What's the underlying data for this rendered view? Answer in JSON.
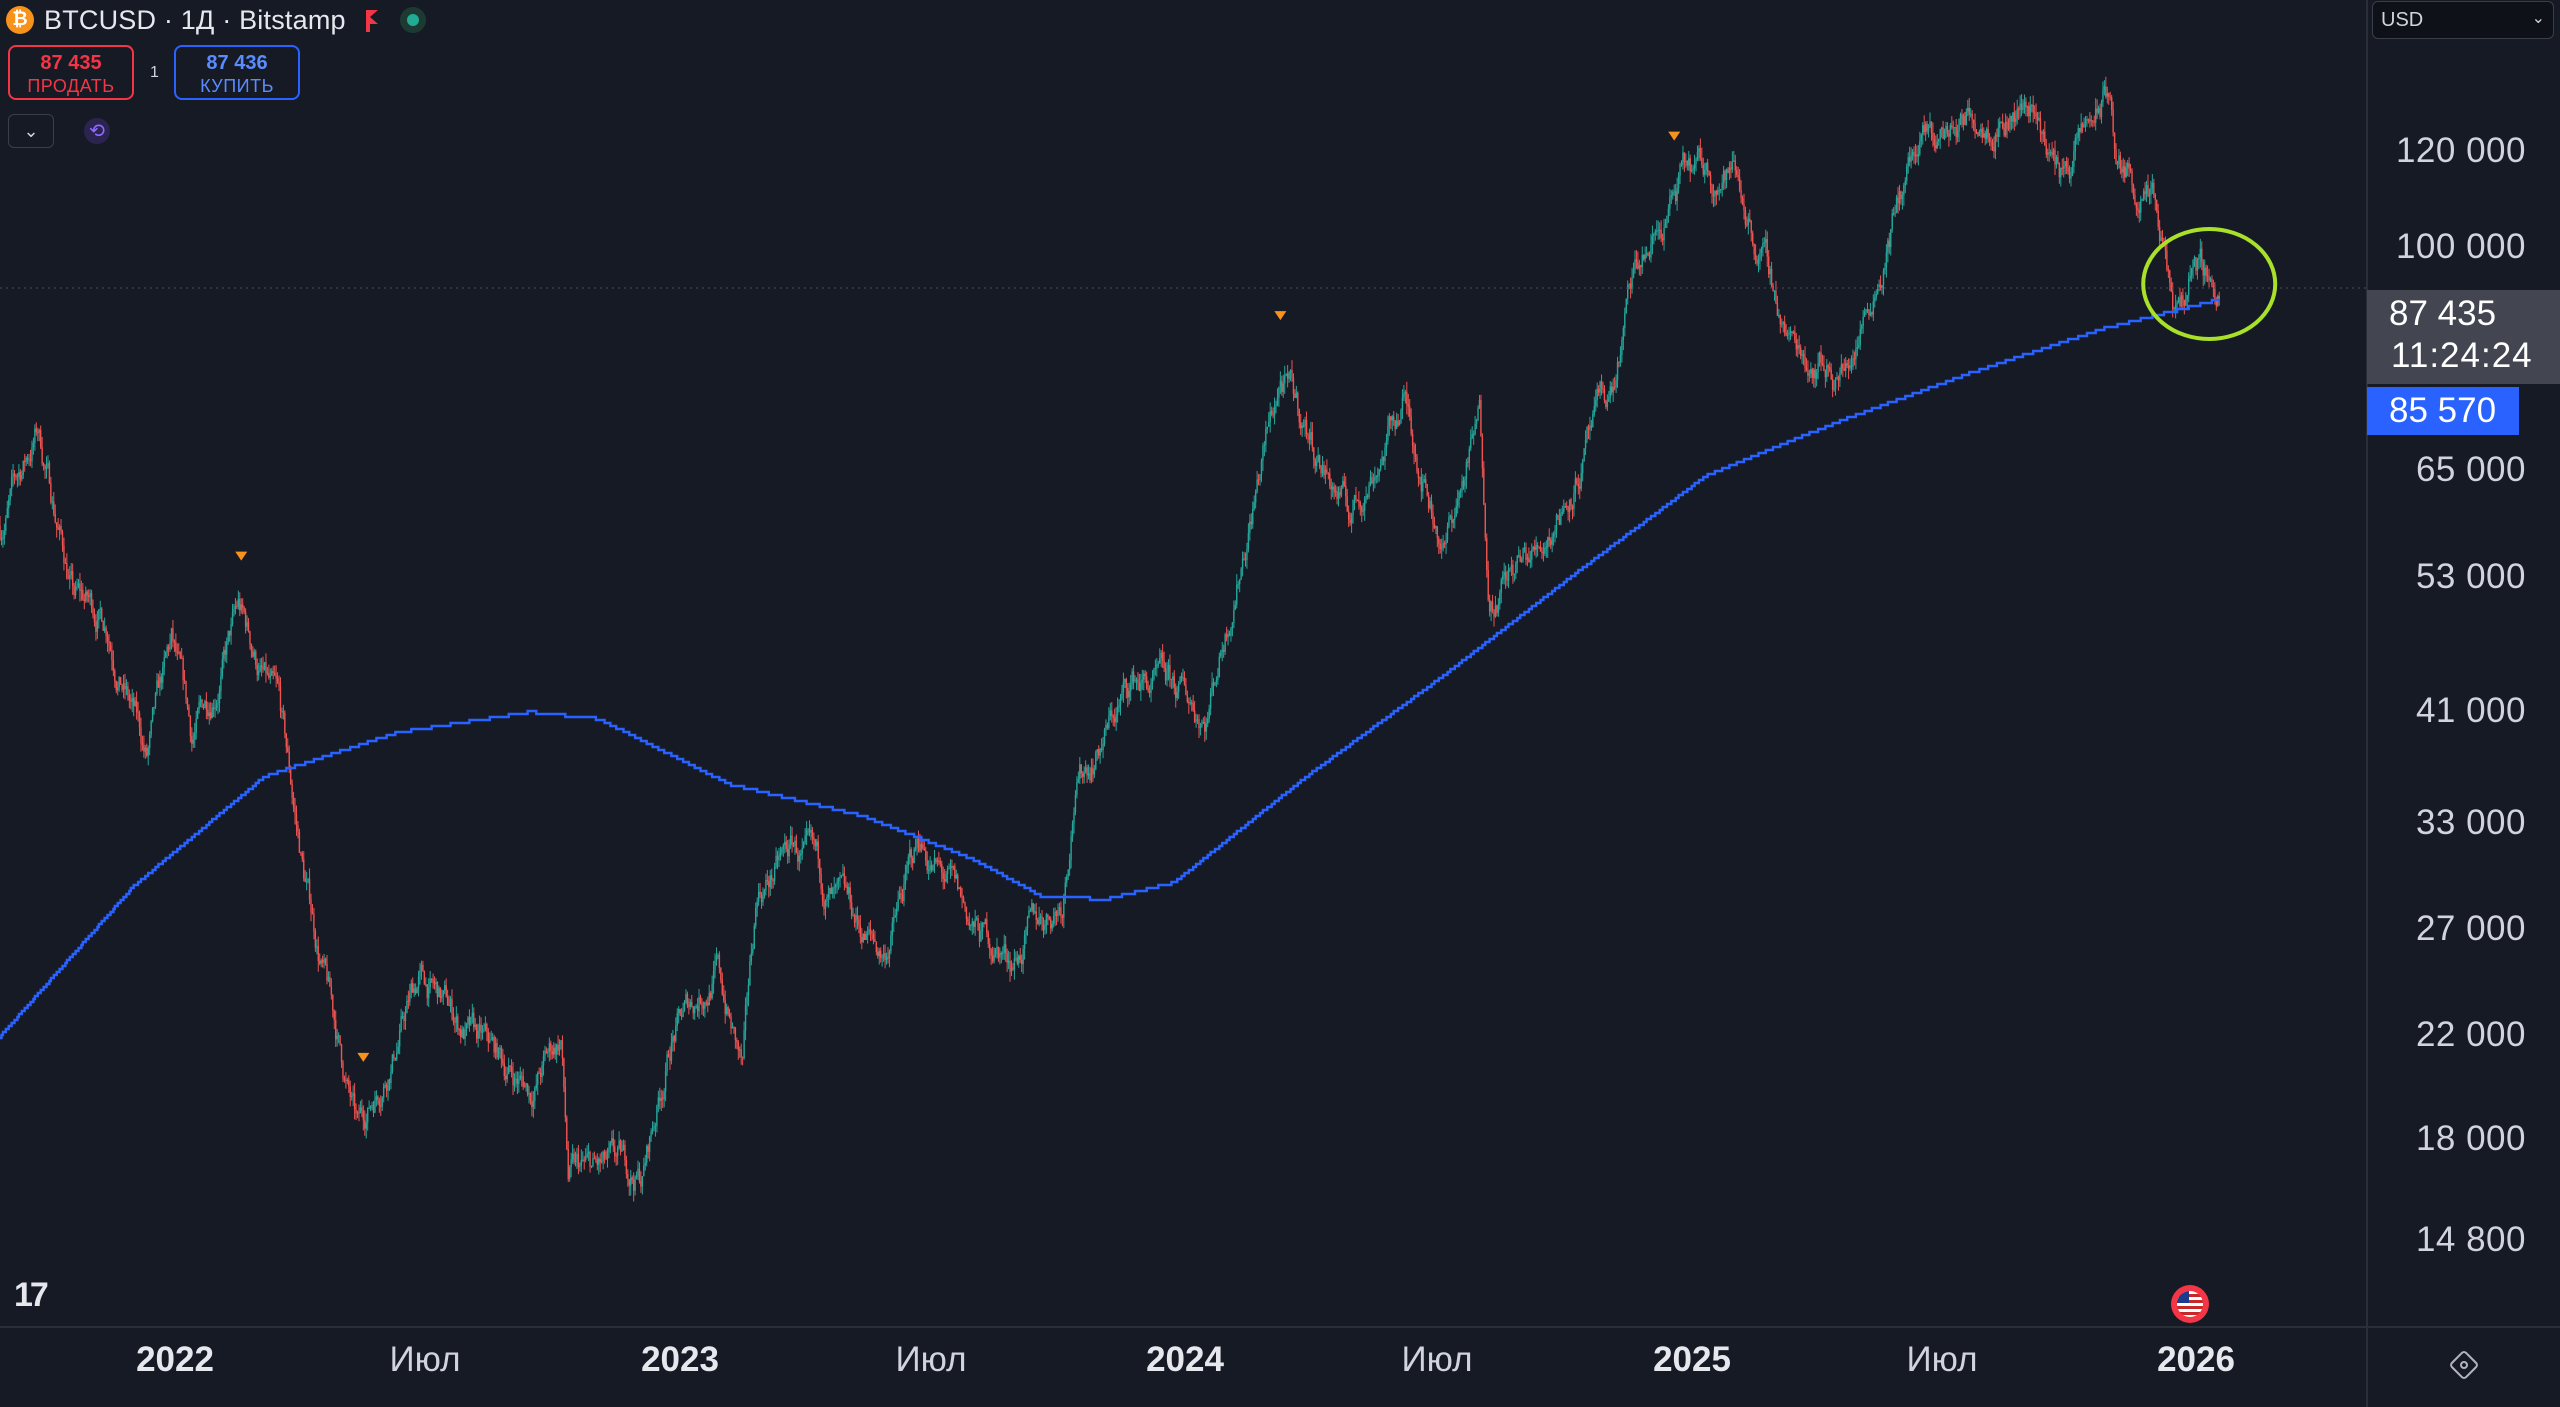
{
  "header": {
    "logo_glyph": "₿",
    "symbol_line": "BTCUSD · 1Д · Bitstamp",
    "sell_price": "87 435",
    "sell_label": "ПРОДАТЬ",
    "buy_price": "87 436",
    "buy_label": "КУПИТЬ",
    "spread": "1",
    "collapse_glyph": "⌄",
    "sync_glyph": "⟲"
  },
  "price_axis": {
    "currency": "USD",
    "currency_caret": "⌄",
    "ticks": [
      "120 000",
      "100 000",
      "65 000",
      "53 000",
      "41 000",
      "33 000",
      "27 000",
      "22 000",
      "18 000",
      "14 800"
    ],
    "last_price": "87 435",
    "countdown": "11:24:24",
    "ma_value": "85 570"
  },
  "time_axis": {
    "labels": [
      {
        "text": "2022",
        "year": true
      },
      {
        "text": "Июл",
        "year": false
      },
      {
        "text": "2023",
        "year": true
      },
      {
        "text": "Июл",
        "year": false
      },
      {
        "text": "2024",
        "year": true
      },
      {
        "text": "Июл",
        "year": false
      },
      {
        "text": "2025",
        "year": true
      },
      {
        "text": "Июл",
        "year": false
      },
      {
        "text": "2026",
        "year": true
      }
    ]
  },
  "footer": {
    "tv_logo": "17"
  },
  "colors": {
    "background": "#161a25",
    "up": "#26a69a",
    "down": "#ef5350",
    "ma_line": "#2962ff",
    "annotation": "#a8e02a",
    "marker": "#f7931a"
  },
  "chart_data": {
    "type": "candlestick",
    "symbol": "BTCUSD",
    "interval": "1D",
    "exchange": "Bitstamp",
    "y_scale": "log",
    "ylim": [
      12500,
      150000
    ],
    "x_range": [
      "2021-10-15",
      "2026-03-31"
    ],
    "price_path": [
      [
        "2021-10-15",
        56000
      ],
      [
        "2021-11-10",
        67000
      ],
      [
        "2021-12-05",
        49000
      ],
      [
        "2021-12-28",
        47000
      ],
      [
        "2022-01-24",
        36000
      ],
      [
        "2022-02-10",
        44000
      ],
      [
        "2022-02-24",
        37000
      ],
      [
        "2022-03-28",
        47500
      ],
      [
        "2022-04-25",
        39000
      ],
      [
        "2022-05-12",
        29000
      ],
      [
        "2022-06-18",
        17800
      ],
      [
        "2022-07-01",
        19500
      ],
      [
        "2022-07-30",
        24000
      ],
      [
        "2022-09-10",
        21000
      ],
      [
        "2022-10-15",
        19500
      ],
      [
        "2022-11-05",
        21500
      ],
      [
        "2022-11-10",
        16500
      ],
      [
        "2022-12-31",
        16500
      ],
      [
        "2023-01-20",
        21500
      ],
      [
        "2023-02-20",
        24500
      ],
      [
        "2023-03-10",
        20000
      ],
      [
        "2023-03-20",
        28000
      ],
      [
        "2023-04-14",
        30500
      ],
      [
        "2023-05-15",
        27000
      ],
      [
        "2023-06-15",
        25000
      ],
      [
        "2023-07-10",
        31000
      ],
      [
        "2023-08-17",
        26000
      ],
      [
        "2023-09-11",
        25000
      ],
      [
        "2023-10-16",
        28000
      ],
      [
        "2023-10-24",
        34500
      ],
      [
        "2023-12-05",
        42000
      ],
      [
        "2024-01-23",
        39500
      ],
      [
        "2024-02-28",
        62000
      ],
      [
        "2024-03-14",
        73500
      ],
      [
        "2024-05-01",
        57000
      ],
      [
        "2024-06-07",
        71000
      ],
      [
        "2024-07-05",
        54000
      ],
      [
        "2024-07-29",
        68000
      ],
      [
        "2024-08-05",
        49500
      ],
      [
        "2024-09-06",
        53000
      ],
      [
        "2024-10-29",
        72000
      ],
      [
        "2024-11-12",
        88000
      ],
      [
        "2024-12-17",
        107000
      ],
      [
        "2025-01-20",
        109000
      ],
      [
        "2025-02-28",
        79000
      ],
      [
        "2025-04-07",
        75000
      ],
      [
        "2025-05-22",
        111000
      ],
      [
        "2025-07-14",
        123000
      ],
      [
        "2025-08-14",
        124000
      ],
      [
        "2025-09-01",
        108000
      ],
      [
        "2025-10-06",
        126000
      ],
      [
        "2025-10-10",
        110000
      ],
      [
        "2025-11-04",
        101000
      ],
      [
        "2025-11-21",
        80500
      ],
      [
        "2025-12-03",
        93000
      ],
      [
        "2025-12-20",
        87435
      ]
    ],
    "moving_average": {
      "value": 85570,
      "path": [
        [
          "2021-10-15",
          21500
        ],
        [
          "2022-01-15",
          28500
        ],
        [
          "2022-04-15",
          35000
        ],
        [
          "2022-07-15",
          38000
        ],
        [
          "2022-10-15",
          39500
        ],
        [
          "2022-12-01",
          39000
        ],
        [
          "2023-03-01",
          34500
        ],
        [
          "2023-06-01",
          32500
        ],
        [
          "2023-08-15",
          30000
        ],
        [
          "2023-10-01",
          28000
        ],
        [
          "2023-11-15",
          27800
        ],
        [
          "2024-01-01",
          28700
        ],
        [
          "2024-04-01",
          35000
        ],
        [
          "2024-07-01",
          42000
        ],
        [
          "2024-10-01",
          51000
        ],
        [
          "2025-01-01",
          61500
        ],
        [
          "2025-04-01",
          68000
        ],
        [
          "2025-07-01",
          74500
        ],
        [
          "2025-10-01",
          81000
        ],
        [
          "2025-12-20",
          85570
        ]
      ]
    },
    "markers": [
      "2022-03-30",
      "2022-06-22",
      "2024-03-14",
      "2024-12-10"
    ],
    "last_price": 87435,
    "annotation": "circle around current price"
  }
}
